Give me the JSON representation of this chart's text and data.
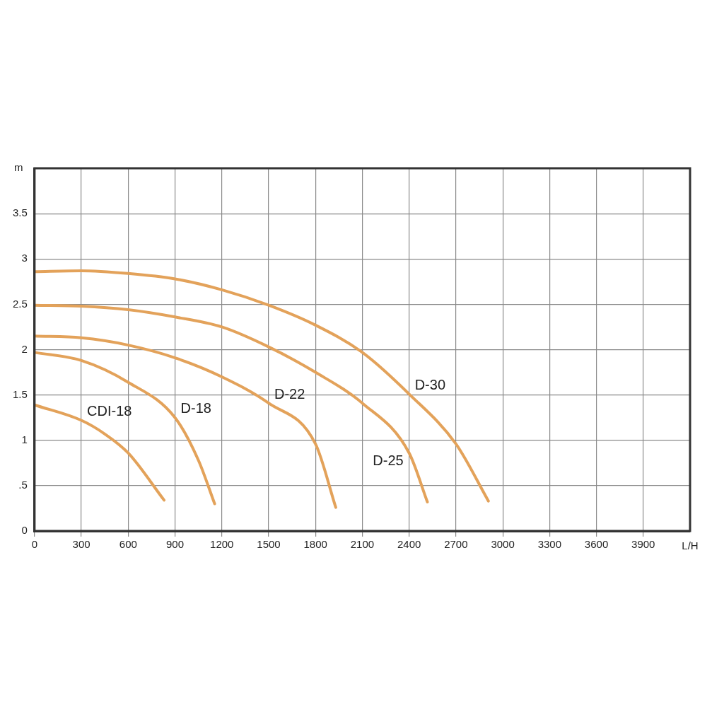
{
  "chart_data": {
    "type": "line",
    "xlabel": "L/H",
    "ylabel": "m",
    "xlim": [
      0,
      4200
    ],
    "xticks": [
      0,
      300,
      600,
      900,
      1200,
      1500,
      1800,
      2100,
      2400,
      2700,
      3000,
      3300,
      3600,
      3900
    ],
    "ylim": [
      0,
      4
    ],
    "yticks": [
      0,
      {
        "value": 0.5,
        "label": ".5"
      },
      1,
      1.5,
      2,
      2.5,
      3,
      3.5
    ],
    "grid": true,
    "legend": false,
    "marker": "none",
    "line_style": "solid",
    "series": [
      {
        "name": "CDI-18",
        "color": "#e3a25a",
        "x": [
          0,
          300,
          450,
          600,
          830
        ],
        "values": [
          1.39,
          1.22,
          1.07,
          0.86,
          0.34
        ]
      },
      {
        "name": "D-18",
        "color": "#e3a25a",
        "x": [
          0,
          300,
          600,
          900,
          1050,
          1154
        ],
        "values": [
          1.97,
          1.88,
          1.64,
          1.25,
          0.78,
          0.3
        ]
      },
      {
        "name": "D-22",
        "color": "#e3a25a",
        "x": [
          0,
          300,
          600,
          900,
          1200,
          1500,
          1800,
          1930
        ],
        "values": [
          2.15,
          2.13,
          2.05,
          1.91,
          1.7,
          1.41,
          0.96,
          0.26
        ]
      },
      {
        "name": "D-25",
        "color": "#e3a25a",
        "x": [
          0,
          300,
          600,
          900,
          1200,
          1500,
          1800,
          2100,
          2400,
          2517
        ],
        "values": [
          2.49,
          2.48,
          2.44,
          2.36,
          2.25,
          2.03,
          1.75,
          1.41,
          0.86,
          0.32
        ]
      },
      {
        "name": "D-30",
        "color": "#e3a25a",
        "x": [
          0,
          300,
          600,
          900,
          1200,
          1500,
          1800,
          2100,
          2400,
          2700,
          2908
        ],
        "values": [
          2.86,
          2.87,
          2.84,
          2.78,
          2.66,
          2.49,
          2.27,
          1.97,
          1.51,
          0.96,
          0.33
        ]
      }
    ]
  }
}
